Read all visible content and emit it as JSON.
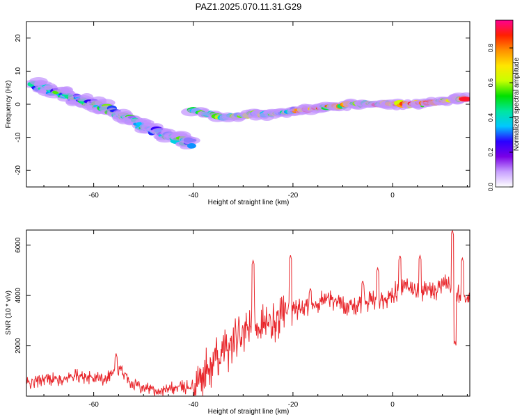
{
  "title": "PAZ1.2025.070.11.31.G29",
  "chart_data": [
    {
      "type": "heatmap",
      "xlabel": "Height of straight line (km)",
      "ylabel": "Frequency (Hz)",
      "xlim": [
        -73.5,
        15.5
      ],
      "ylim": [
        -25,
        25
      ],
      "xticks": [
        -60,
        -40,
        -20,
        0
      ],
      "yticks": [
        -20,
        -10,
        0,
        10,
        20
      ],
      "colorbar": {
        "label": "Normalized spectral amplitude",
        "range": [
          0,
          0.96
        ],
        "ticks": [
          0.0,
          0.2,
          0.4,
          0.6,
          0.8
        ],
        "colormap": [
          "#ffffff",
          "#c8a0ff",
          "#7a00e6",
          "#2a00ff",
          "#00c8ff",
          "#00e6a0",
          "#00e000",
          "#c8ff00",
          "#ffe600",
          "#ff9000",
          "#ff2000",
          "#ff0090"
        ]
      },
      "ridges": [
        {
          "name": "descending",
          "points": [
            [
              -72,
              6
            ],
            [
              -68,
              4
            ],
            [
              -64,
              2
            ],
            [
              -60,
              0
            ],
            [
              -56,
              -2
            ],
            [
              -52,
              -5
            ],
            [
              -48,
              -8
            ],
            [
              -44,
              -10
            ],
            [
              -40,
              -12
            ]
          ]
        },
        {
          "name": "rising",
          "points": [
            [
              -40,
              -2
            ],
            [
              -34,
              -4
            ],
            [
              -28,
              -3
            ],
            [
              -24,
              -3
            ],
            [
              -20,
              -2
            ],
            [
              -14,
              -1
            ],
            [
              -8,
              0
            ],
            [
              -2,
              0
            ],
            [
              4,
              0
            ],
            [
              10,
              1
            ],
            [
              15,
              2
            ]
          ]
        }
      ]
    },
    {
      "type": "line",
      "xlabel": "Height of straight line (km)",
      "ylabel": "SNR (10 * v/v)",
      "xlim": [
        -73.5,
        15.5
      ],
      "ylim": [
        0,
        6600
      ],
      "xticks": [
        -60,
        -40,
        -20,
        0
      ],
      "yticks": [
        2000,
        4000,
        6000
      ],
      "color": "#e8262b",
      "series": [
        {
          "x": [
            -73,
            -70,
            -67,
            -64,
            -61,
            -58,
            -55,
            -52,
            -49,
            -46,
            -43,
            -40,
            -37,
            -34,
            -31,
            -28,
            -25,
            -22,
            -19,
            -16,
            -13,
            -10,
            -7,
            -4,
            -1,
            2,
            5,
            8,
            11,
            13,
            15
          ],
          "values": [
            500,
            700,
            650,
            800,
            750,
            700,
            1100,
            500,
            300,
            200,
            350,
            400,
            1100,
            1700,
            2300,
            3000,
            2700,
            3200,
            3500,
            3600,
            3900,
            3700,
            3600,
            3800,
            3900,
            4300,
            4200,
            4100,
            4400,
            4200,
            4000
          ],
          "peaks": [
            [
              -55.5,
              1700
            ],
            [
              -28,
              5400
            ],
            [
              -20.5,
              5600
            ],
            [
              -16.5,
              4300
            ],
            [
              -6,
              4600
            ],
            [
              -3,
              5100
            ],
            [
              1.5,
              5600
            ],
            [
              5.5,
              5600
            ],
            [
              12,
              6600
            ],
            [
              12.5,
              2200
            ],
            [
              14,
              5500
            ]
          ]
        }
      ]
    }
  ]
}
